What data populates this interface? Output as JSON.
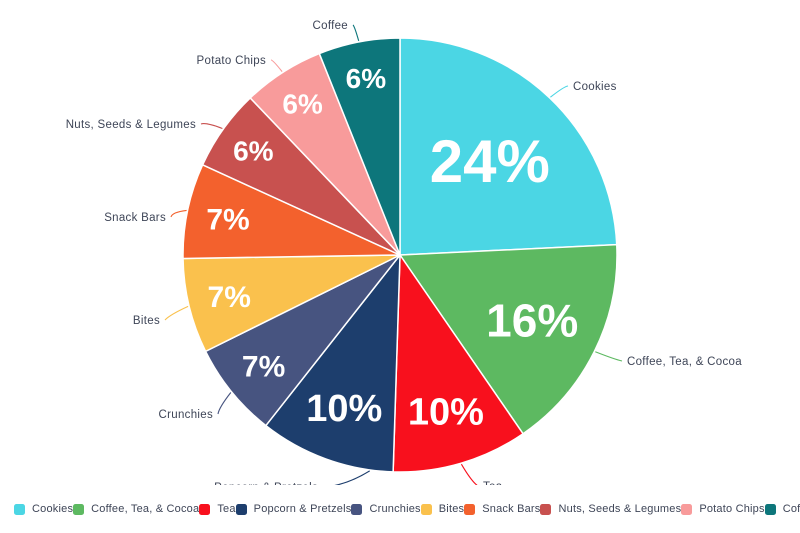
{
  "chart_data": {
    "type": "pie",
    "title": "",
    "unit": "%",
    "legend": {
      "position": "bottom"
    },
    "background_color": "#ffffff",
    "percent_label_color": "#ffffff",
    "category_label_color": "#3e4557",
    "slices": [
      {
        "label": "Cookies",
        "value": 24,
        "display": "24%",
        "color": "#4bd6e4"
      },
      {
        "label": "Coffee, Tea, & Cocoa",
        "value": 16,
        "display": "16%",
        "color": "#5db961"
      },
      {
        "label": "Tea",
        "value": 10,
        "display": "10%",
        "color": "#f8101d"
      },
      {
        "label": "Popcorn & Pretzels",
        "value": 10,
        "display": "10%",
        "color": "#1d3e6d"
      },
      {
        "label": "Crunchies",
        "value": 7,
        "display": "7%",
        "color": "#475480"
      },
      {
        "label": "Bites",
        "value": 7,
        "display": "7%",
        "color": "#fac14d"
      },
      {
        "label": "Snack Bars",
        "value": 7,
        "display": "7%",
        "color": "#f3612d"
      },
      {
        "label": "Nuts, Seeds & Legumes",
        "value": 6,
        "display": "6%",
        "color": "#c8514f"
      },
      {
        "label": "Potato Chips",
        "value": 6,
        "display": "6%",
        "color": "#f89b9b"
      },
      {
        "label": "Coffee",
        "value": 6,
        "display": "6%",
        "color": "#0d767b"
      }
    ]
  }
}
